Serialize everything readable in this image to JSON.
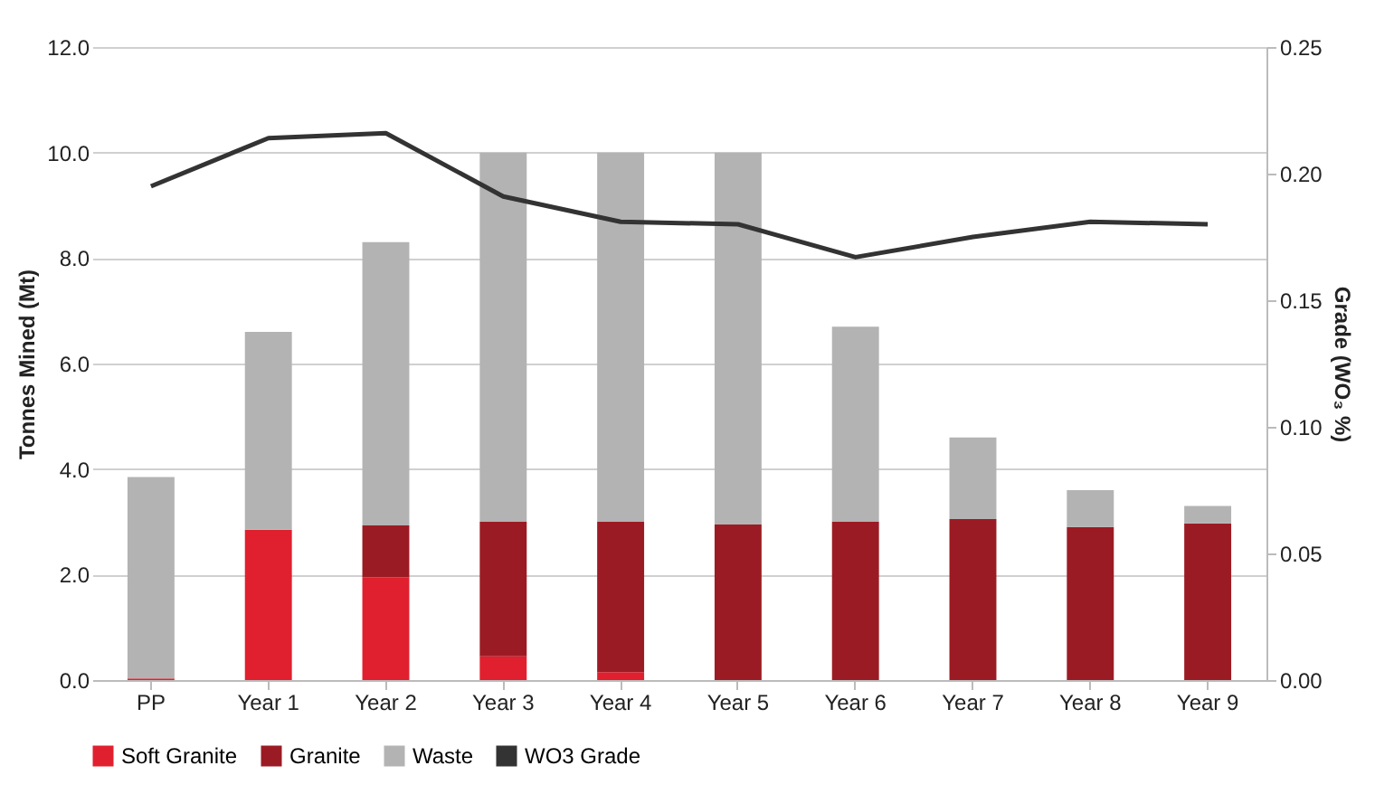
{
  "chart_data": {
    "type": "bar",
    "stacked": true,
    "categories": [
      "PP",
      "Year 1",
      "Year 2",
      "Year 3",
      "Year 4",
      "Year 5",
      "Year 6",
      "Year 7",
      "Year 8",
      "Year 9"
    ],
    "series": [
      {
        "name": "Soft Granite",
        "color": "#e0202e",
        "values": [
          0.03,
          2.85,
          1.95,
          0.45,
          0.15,
          0,
          0,
          0,
          0,
          0
        ]
      },
      {
        "name": "Granite",
        "color": "#9b1b24",
        "values": [
          0,
          0,
          0.98,
          2.55,
          2.85,
          2.95,
          3.0,
          3.05,
          2.9,
          2.97
        ]
      },
      {
        "name": "Waste",
        "color": "#b3b3b3",
        "values": [
          3.82,
          3.75,
          5.37,
          7.0,
          7.0,
          7.05,
          3.7,
          1.55,
          0.7,
          0.33
        ]
      },
      {
        "name": "WO3 Grade",
        "type": "line",
        "axis": "y2",
        "color": "#333333",
        "values": [
          0.195,
          0.214,
          0.216,
          0.191,
          0.181,
          0.18,
          0.167,
          0.175,
          0.181,
          0.18
        ]
      }
    ],
    "ylabel": "Tonnes Mined (Mt)",
    "y2label": "Grade (WO₃ %)",
    "ylim": [
      0,
      12
    ],
    "yticks": [
      {
        "value": 0,
        "label": "0.0"
      },
      {
        "value": 2,
        "label": "2.0"
      },
      {
        "value": 4,
        "label": "4.0"
      },
      {
        "value": 6,
        "label": "6.0"
      },
      {
        "value": 8,
        "label": "8.0"
      },
      {
        "value": 10,
        "label": "10.0"
      },
      {
        "value": 12,
        "label": "12.0"
      }
    ],
    "y2lim": [
      0,
      0.25
    ],
    "y2ticks": [
      {
        "value": 0,
        "label": "0.00"
      },
      {
        "value": 0.05,
        "label": "0.05"
      },
      {
        "value": 0.1,
        "label": "0.10"
      },
      {
        "value": 0.15,
        "label": "0.15"
      },
      {
        "value": 0.2,
        "label": "0.20"
      },
      {
        "value": 0.25,
        "label": "0.25"
      }
    ],
    "grid": "y",
    "legend": "bottom"
  }
}
